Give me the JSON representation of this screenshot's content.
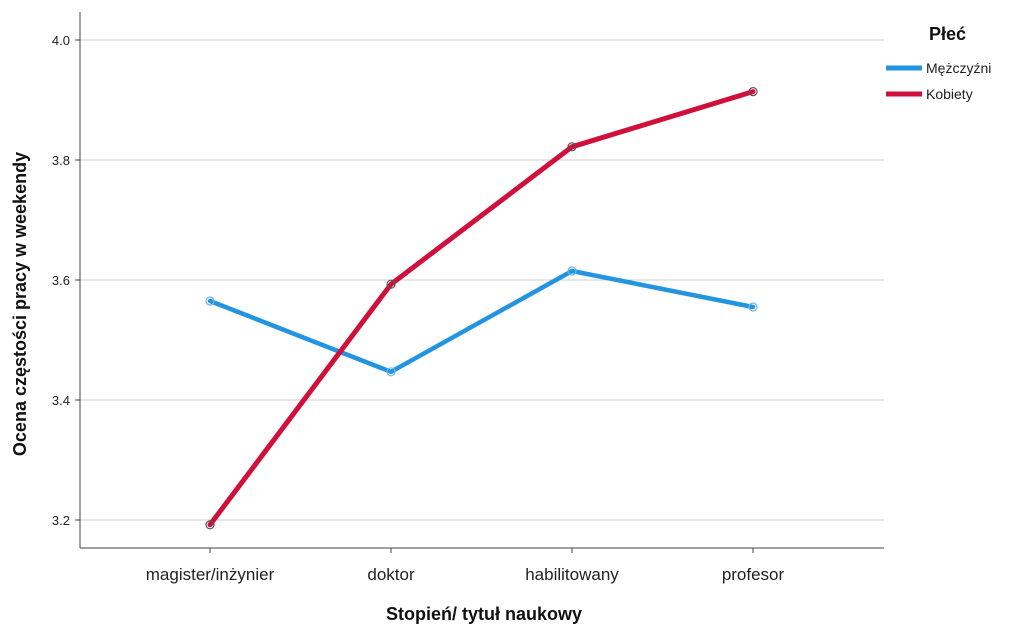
{
  "chart_data": {
    "type": "line",
    "xlabel": "Stopień/ tytuł naukowy",
    "ylabel": "Ocena częstości pracy w weekendy",
    "categories": [
      "magister/inżynier",
      "doktor",
      "habilitowany",
      "profesor"
    ],
    "ylim": [
      3.15,
      4.05
    ],
    "yticks": [
      3.2,
      3.4,
      3.6,
      3.8,
      4.0
    ],
    "ytick_labels": [
      "3.2",
      "3.4",
      "3.6",
      "3.8",
      "4.0"
    ],
    "grid": "horizontal",
    "legend": {
      "title": "Płeć",
      "placement": "top-right"
    },
    "series": [
      {
        "name": "Mężczyźni",
        "color": "#2394e0",
        "values": [
          3.565,
          3.447,
          3.615,
          3.555
        ]
      },
      {
        "name": "Kobiety",
        "color": "#d0103a",
        "values": [
          3.192,
          3.593,
          3.822,
          3.914
        ]
      }
    ]
  }
}
